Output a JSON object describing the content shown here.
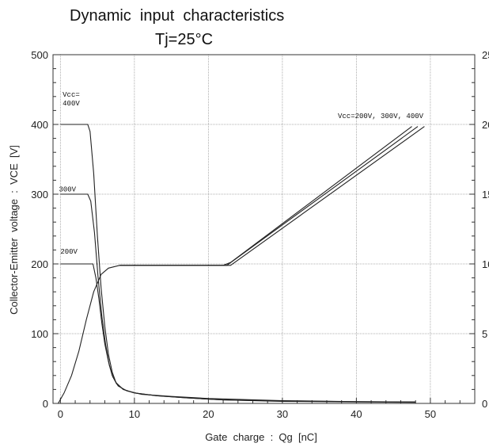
{
  "chart_data": {
    "type": "line",
    "title": "Dynamic  input  characteristics",
    "subtitle": "Tj=25°C",
    "xlabel": "Gate  charge  :  Qg  [nC]",
    "ylabel": "Collector-Emitter  voltage  :  VCE  [V]",
    "xlim": [
      -1,
      56
    ],
    "ylim": [
      0,
      500
    ],
    "x_ticks": [
      0,
      10,
      20,
      30,
      40,
      50
    ],
    "y_ticks": [
      0,
      100,
      200,
      300,
      400,
      500
    ],
    "right_ticks": [
      "25",
      "20",
      "15",
      "10",
      "5",
      "0"
    ],
    "grid": true,
    "series": [
      {
        "name": "400V",
        "role": "VCE",
        "points": [
          [
            0,
            400
          ],
          [
            3.7,
            400
          ],
          [
            4.0,
            390
          ],
          [
            4.5,
            330
          ],
          [
            5.0,
            240
          ],
          [
            5.5,
            165
          ],
          [
            6.0,
            110
          ],
          [
            6.5,
            70
          ],
          [
            7.0,
            45
          ],
          [
            7.5,
            30
          ],
          [
            8.5,
            20
          ],
          [
            10,
            15
          ],
          [
            13,
            11
          ],
          [
            17,
            8
          ],
          [
            22,
            5
          ],
          [
            30,
            3
          ],
          [
            40,
            2
          ],
          [
            48,
            1.5
          ]
        ]
      },
      {
        "name": "300V",
        "role": "VCE",
        "points": [
          [
            0,
            300
          ],
          [
            3.7,
            300
          ],
          [
            4.1,
            290
          ],
          [
            4.6,
            245
          ],
          [
            5.1,
            180
          ],
          [
            5.6,
            125
          ],
          [
            6.1,
            85
          ],
          [
            6.6,
            55
          ],
          [
            7.1,
            38
          ],
          [
            7.8,
            25
          ],
          [
            9,
            18
          ],
          [
            11,
            13
          ],
          [
            15,
            10
          ],
          [
            20,
            7
          ],
          [
            30,
            4
          ],
          [
            40,
            2.5
          ],
          [
            48,
            2
          ]
        ]
      },
      {
        "name": "200V",
        "role": "VCE",
        "points": [
          [
            0,
            200
          ],
          [
            4.4,
            200
          ],
          [
            4.8,
            180
          ],
          [
            5.2,
            150
          ],
          [
            5.6,
            115
          ],
          [
            6.0,
            85
          ],
          [
            6.5,
            60
          ],
          [
            7.0,
            40
          ],
          [
            7.6,
            28
          ],
          [
            8.5,
            20
          ],
          [
            10,
            15
          ],
          [
            13,
            11
          ],
          [
            17,
            8
          ],
          [
            22,
            5
          ],
          [
            30,
            3.5
          ],
          [
            40,
            2.5
          ],
          [
            48,
            2
          ]
        ]
      },
      {
        "name": "VGE 200V",
        "role": "VGE",
        "points": [
          [
            -0.3,
            0
          ],
          [
            0.5,
            15
          ],
          [
            1.5,
            40
          ],
          [
            2.5,
            75
          ],
          [
            3.5,
            120
          ],
          [
            4.5,
            160
          ],
          [
            5.5,
            185
          ],
          [
            6.5,
            194
          ],
          [
            8,
            198
          ],
          [
            12,
            198
          ],
          [
            22,
            198
          ],
          [
            23,
            202
          ],
          [
            47.5,
            397
          ]
        ]
      },
      {
        "name": "VGE 300V",
        "role": "VGE",
        "points": [
          [
            8,
            198
          ],
          [
            22.5,
            198
          ],
          [
            48.3,
            397
          ]
        ]
      },
      {
        "name": "VGE 400V",
        "role": "VGE",
        "points": [
          [
            8,
            198
          ],
          [
            23,
            198
          ],
          [
            49.2,
            397
          ]
        ]
      }
    ],
    "annotations": [
      {
        "text": "Vcc=",
        "x": 0.3,
        "y": 440
      },
      {
        "text": "400V",
        "x": 0.3,
        "y": 427
      },
      {
        "text": "300V",
        "x": -0.2,
        "y": 304
      },
      {
        "text": "200V",
        "x": 0.0,
        "y": 215
      },
      {
        "text": "Vcc=200V, 300V, 400V",
        "x": 37.5,
        "y": 409
      }
    ]
  }
}
